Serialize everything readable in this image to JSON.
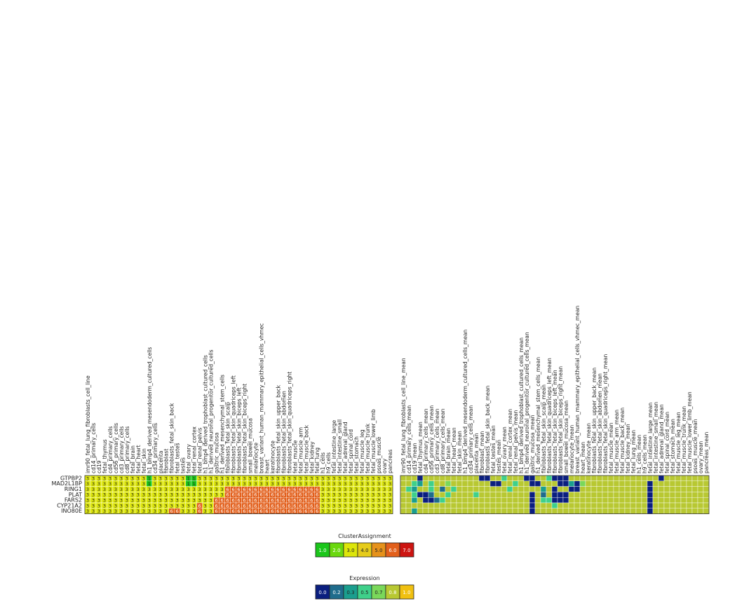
{
  "chart_data": [
    {
      "type": "heatmap",
      "name": "cluster-assignment-heatmap",
      "rows": [
        "GTPBP2",
        "MAD2L1BP",
        "RING1",
        "PLAT",
        "FARS2",
        "CYP21A2",
        "INO80E"
      ],
      "columns": [
        "imr90_fetal_lung_fibroblasts_cell_line",
        "cd14_primary_cells",
        "cd19",
        "fetal_thymus",
        "cd4_primary_cells",
        "cd56_primary_cells",
        "cd3_primary_cells",
        "cd8_primary_cells",
        "fetal_brain",
        "fetal_heart",
        "fetal_skin",
        "h1_bmp4_derived_mesendoderm_cultured_cells",
        "cd34_primary_cells",
        "placenta",
        "fibroblast",
        "fibroblasts_fetal_skin_back",
        "fetal_testes",
        "testes",
        "fetal_ovary",
        "fetal_renal_cortex",
        "fetal_renal_pelvis",
        "h1_bmp4_derived_trophoblast_cultured_cells",
        "h1_derived_neuronal_progenitor_cultured_cells",
        "gastric_mucosa",
        "h1_derived_mesenchymal_stem_cells",
        "fibroblasts_fetal_skin_scalp",
        "fibroblasts_fetal_skin_quadriceps_left",
        "fibroblasts_fetal_skin_biceps_left",
        "fibroblasts_fetal_skin_biceps_right",
        "small_bowel_mucosa",
        "melanocyte",
        "breast_variant_human_mammary_epithelial_cells_vhmec",
        "heart",
        "keratinocyte",
        "fibroblasts_fetal_skin_upper_back",
        "fibroblasts_fetal_skin_abdomen",
        "fibroblasts_fetal_skin_quadriceps_right",
        "fetal_muscle",
        "fetal_muscle_arm",
        "fetal_muscle_back",
        "fetal_kidney",
        "fetal_lung",
        "h1_cells",
        "h9_cells",
        "fetal_intestine_large",
        "fetal_intestine_small",
        "fetal_adrenal_gland",
        "fetal_spinal_cord",
        "fetal_stomach",
        "fetal_muscle_leg",
        "fetal_muscle_trunk",
        "fetal_muscle_lower_limb",
        "psoas_muscle",
        "ovary",
        "pancreas"
      ],
      "values": [
        [
          3,
          3,
          3,
          3,
          3,
          3,
          3,
          3,
          3,
          3,
          3,
          1,
          3,
          3,
          3,
          3,
          3,
          3,
          1,
          1,
          3,
          3,
          3,
          3,
          3,
          3,
          3,
          3,
          3,
          3,
          3,
          3,
          3,
          3,
          3,
          3,
          3,
          3,
          3,
          3,
          3,
          3,
          3,
          3,
          3,
          3,
          3,
          3,
          3,
          3,
          3,
          3,
          3,
          3,
          3
        ],
        [
          3,
          3,
          3,
          3,
          3,
          3,
          3,
          3,
          3,
          3,
          3,
          1,
          3,
          3,
          3,
          3,
          3,
          3,
          1,
          1,
          3,
          3,
          3,
          3,
          3,
          3,
          3,
          3,
          3,
          3,
          3,
          3,
          3,
          3,
          3,
          3,
          3,
          3,
          3,
          3,
          3,
          3,
          3,
          3,
          3,
          3,
          3,
          3,
          3,
          3,
          3,
          3,
          3,
          3,
          3
        ],
        [
          3,
          3,
          3,
          3,
          3,
          3,
          3,
          3,
          3,
          3,
          3,
          3,
          3,
          3,
          3,
          3,
          3,
          3,
          3,
          3,
          3,
          3,
          3,
          3,
          3,
          6,
          6,
          6,
          6,
          6,
          6,
          6,
          6,
          6,
          6,
          6,
          6,
          6,
          6,
          6,
          6,
          6,
          3,
          3,
          3,
          3,
          3,
          3,
          3,
          3,
          3,
          3,
          3,
          3,
          3
        ],
        [
          3,
          3,
          3,
          3,
          3,
          3,
          3,
          3,
          3,
          3,
          3,
          3,
          3,
          3,
          3,
          3,
          3,
          3,
          3,
          3,
          3,
          3,
          3,
          3,
          3,
          6,
          6,
          6,
          6,
          6,
          6,
          6,
          6,
          6,
          6,
          6,
          6,
          6,
          6,
          6,
          6,
          6,
          3,
          3,
          3,
          3,
          3,
          3,
          3,
          3,
          3,
          3,
          3,
          3,
          3
        ],
        [
          3,
          3,
          3,
          3,
          3,
          3,
          3,
          3,
          3,
          3,
          3,
          3,
          3,
          3,
          3,
          3,
          3,
          3,
          3,
          3,
          3,
          3,
          3,
          6,
          6,
          6,
          6,
          6,
          6,
          6,
          6,
          6,
          6,
          6,
          6,
          6,
          6,
          6,
          6,
          6,
          6,
          6,
          3,
          3,
          3,
          3,
          3,
          3,
          3,
          3,
          3,
          3,
          3,
          3,
          3
        ],
        [
          3,
          3,
          3,
          3,
          3,
          3,
          3,
          3,
          3,
          3,
          3,
          3,
          3,
          3,
          3,
          3,
          3,
          3,
          3,
          3,
          6,
          3,
          3,
          6,
          6,
          6,
          6,
          6,
          6,
          6,
          6,
          6,
          6,
          6,
          6,
          6,
          6,
          6,
          6,
          6,
          6,
          6,
          3,
          3,
          3,
          3,
          3,
          3,
          3,
          3,
          3,
          3,
          3,
          3,
          3
        ],
        [
          3,
          3,
          3,
          3,
          3,
          3,
          3,
          3,
          3,
          3,
          3,
          3,
          3,
          3,
          3,
          6,
          6,
          3,
          3,
          3,
          6,
          3,
          3,
          6,
          6,
          6,
          6,
          6,
          6,
          6,
          6,
          6,
          6,
          6,
          6,
          6,
          6,
          6,
          6,
          6,
          6,
          6,
          3,
          3,
          3,
          3,
          3,
          3,
          3,
          3,
          3,
          3,
          3,
          3,
          3
        ]
      ],
      "legend": {
        "title": "ClusterAssignment",
        "values": [
          "1.0",
          "2.0",
          "3.0",
          "4.0",
          "5.0",
          "6.0",
          "7.0"
        ],
        "colors": [
          "#1bc61b",
          "#6ad80e",
          "#dde60a",
          "#e6cc1a",
          "#e6921b",
          "#e25f1b",
          "#cc1511"
        ]
      }
    },
    {
      "type": "heatmap",
      "name": "expression-heatmap",
      "rows": [
        "GTPBP2",
        "MAD2L1BP",
        "RING1",
        "PLAT",
        "FARS2",
        "CYP21A2",
        "INO80E"
      ],
      "columns": [
        "imr90_fetal_lung_fibroblasts_cell_line_mean",
        "cd14_primary_cells_mean",
        "cd19_mean",
        "fetal_thymus_mean",
        "cd4_primary_cells_mean",
        "cd56_primary_cells_mean",
        "cd3_primary_cells_mean",
        "cd8_primary_cells_mean",
        "fetal_brain_mean",
        "fetal_heart_mean",
        "fetal_skin_mean",
        "h1_bmp4_derived_mesendoderm_cultured_cells_mean",
        "cd34_primary_cells_mean",
        "placenta_mean",
        "fibroblast_mean",
        "fibroblasts_fetal_skin_back_mean",
        "fetal_testes_mean",
        "testes_mean",
        "fetal_ovary_mean",
        "fetal_renal_cortex_mean",
        "fetal_renal_pelvis_mean",
        "h1_bmp4_derived_trophoblast_cultured_cells_mean",
        "h1_derived_neuronal_progenitor_cultured_cells_mean",
        "gastric_mucosa_mean",
        "h1_derived_mesenchymal_stem_cells_mean",
        "fibroblasts_fetal_skin_scalp_mean",
        "fibroblasts_fetal_skin_quadriceps_left_mean",
        "fibroblasts_fetal_skin_biceps_left_mean",
        "fibroblasts_fetal_skin_biceps_right_mean",
        "small_bowel_mucosa_mean",
        "melanocyte_mean",
        "breast_variant_human_mammary_epithelial_cells_vhmec_mean",
        "heart_mean",
        "keratinocyte_mean",
        "fibroblasts_fetal_skin_upper_back_mean",
        "fibroblasts_fetal_skin_abdomen_mean",
        "fibroblasts_fetal_skin_quadriceps_right_mean",
        "fetal_muscle_mean",
        "fetal_muscle_arm_mean",
        "fetal_muscle_back_mean",
        "fetal_kidney_mean",
        "fetal_lung_mean",
        "h1_cells_mean",
        "h9_cells_mean",
        "fetal_intestine_large_mean",
        "fetal_intestine_small_mean",
        "fetal_adrenal_gland_mean",
        "fetal_spinal_cord_mean",
        "fetal_stomach_mean",
        "fetal_muscle_leg_mean",
        "fetal_muscle_trunk_mean",
        "fetal_muscle_lower_limb_mean",
        "psoas_muscle_mean",
        "ovary_mean",
        "pancreas_mean"
      ],
      "values": [
        [
          0.8,
          0.8,
          0.8,
          0.0,
          0.8,
          0.8,
          0.8,
          0.8,
          0.8,
          0.8,
          0.8,
          0.8,
          0.8,
          0.8,
          0.0,
          0.0,
          0.8,
          0.8,
          0.5,
          0.8,
          0.8,
          0.8,
          0.0,
          0.0,
          0.8,
          0.8,
          0.5,
          0.1,
          0.0,
          0.0,
          0.8,
          0.8,
          0.8,
          0.8,
          0.8,
          0.8,
          0.8,
          0.8,
          0.8,
          0.8,
          0.8,
          0.8,
          0.8,
          0.8,
          0.8,
          0.8,
          0.0,
          0.8,
          0.8,
          0.8,
          0.8,
          0.8,
          0.8,
          0.8,
          0.8,
          0.8,
          0.8,
          0.8,
          0.8,
          0.8,
          0.8,
          0.8,
          0.8,
          0.8,
          0.8,
          0.8,
          0.8,
          0.8,
          0.8,
          0.1,
          0.1,
          0.8,
          0.8,
          0.8,
          0.8,
          0.8,
          0.8,
          0.5,
          0.5,
          0.1,
          0.2
        ],
        [
          0.8,
          0.8,
          0.5,
          0.3,
          0.8,
          0.5,
          0.8,
          0.8,
          0.7,
          0.8,
          0.8,
          0.8,
          0.8,
          0.8,
          0.8,
          0.8,
          0.0,
          0.0,
          0.8,
          0.8,
          0.5,
          0.8,
          0.8,
          0.0,
          0.0,
          0.8,
          0.8,
          0.8,
          0.0,
          0.0,
          0.3,
          0.0,
          0.7,
          0.8,
          0.8,
          0.8,
          0.8,
          0.8,
          0.8,
          0.8,
          0.8,
          0.8,
          0.8,
          0.8,
          0.0,
          0.8,
          0.8,
          0.8,
          0.8,
          0.8,
          0.8,
          0.8,
          0.8,
          0.8,
          0.8,
          0.8,
          0.8,
          0.8,
          0.8,
          0.8,
          0.8,
          0.8,
          0.8,
          0.8,
          0.8,
          0.8,
          0.8,
          0.8,
          0.8,
          0.8,
          0.8,
          0.8,
          0.8,
          0.5,
          0.8,
          0.8,
          0.8,
          0.8,
          0.0,
          0.8,
          0.8
        ],
        [
          0.8,
          0.5,
          0.3,
          0.8,
          0.8,
          0.5,
          0.8,
          0.2,
          0.8,
          0.5,
          0.8,
          0.8,
          0.8,
          0.8,
          0.8,
          0.8,
          0.8,
          0.8,
          0.8,
          0.5,
          0.8,
          0.8,
          0.8,
          0.8,
          0.8,
          0.3,
          0.8,
          0.0,
          0.8,
          0.8,
          0.0,
          0.1,
          0.8,
          0.8,
          0.8,
          0.8,
          0.8,
          0.8,
          0.8,
          0.8,
          0.8,
          0.8,
          0.8,
          0.8,
          0.0,
          0.8,
          0.8,
          0.8,
          0.8,
          0.8,
          0.8,
          0.8,
          0.8,
          0.8,
          0.8,
          0.8,
          0.8,
          0.8,
          0.8,
          0.8,
          0.8,
          0.8,
          0.8,
          0.8,
          0.8,
          0.8,
          0.8,
          0.8,
          0.8,
          0.8,
          0.8,
          0.8,
          0.8,
          0.8,
          0.3,
          0.0,
          0.8,
          0.8,
          0.8,
          0.8,
          0.0
        ],
        [
          0.8,
          0.8,
          0.5,
          0.0,
          0.0,
          0.2,
          0.8,
          0.8,
          0.5,
          0.8,
          0.8,
          0.8,
          0.8,
          0.5,
          0.8,
          0.8,
          0.8,
          0.8,
          0.8,
          0.8,
          0.8,
          0.8,
          0.8,
          0.0,
          0.8,
          0.2,
          0.8,
          0.0,
          0.0,
          0.0,
          0.8,
          0.8,
          0.8,
          0.8,
          0.8,
          0.8,
          0.8,
          0.8,
          0.8,
          0.8,
          0.8,
          0.8,
          0.8,
          0.8,
          0.0,
          0.8,
          0.8,
          0.8,
          0.8,
          0.8,
          0.8,
          0.8,
          0.8,
          0.8,
          0.8,
          0.8,
          0.8,
          0.8,
          0.8,
          0.8,
          0.8,
          0.8,
          0.8,
          0.8,
          0.8,
          0.8,
          0.8,
          0.8,
          0.8,
          0.8,
          0.0,
          0.8,
          0.8,
          0.8,
          0.8,
          0.8,
          0.8,
          0.8,
          0.8,
          0.8,
          0.8
        ],
        [
          0.8,
          0.8,
          0.3,
          0.8,
          0.1,
          0.0,
          0.2,
          0.5,
          0.8,
          0.8,
          0.8,
          0.8,
          0.8,
          0.8,
          0.8,
          0.8,
          0.8,
          0.8,
          0.8,
          0.8,
          0.8,
          0.8,
          0.8,
          0.0,
          0.8,
          0.5,
          0.5,
          0.1,
          0.0,
          0.0,
          0.8,
          0.8,
          0.8,
          0.8,
          0.8,
          0.8,
          0.8,
          0.8,
          0.8,
          0.8,
          0.8,
          0.8,
          0.8,
          0.8,
          0.0,
          0.8,
          0.8,
          0.8,
          0.8,
          0.8,
          0.8,
          0.8,
          0.8,
          0.8,
          0.8,
          0.8,
          0.8,
          0.8,
          0.8,
          0.8,
          0.8,
          0.8,
          0.8,
          0.8,
          0.8,
          0.8,
          0.8,
          0.8,
          0.1,
          0.8,
          0.8,
          0.8,
          0.8,
          0.8,
          0.8,
          0.8,
          0.8,
          0.5,
          0.8,
          0.8,
          0.8
        ],
        [
          0.8,
          0.8,
          0.8,
          0.8,
          0.8,
          0.8,
          0.8,
          0.8,
          0.8,
          0.8,
          0.8,
          0.8,
          0.8,
          0.8,
          0.8,
          0.8,
          0.8,
          0.8,
          0.8,
          0.8,
          0.8,
          0.8,
          0.8,
          0.0,
          0.8,
          0.8,
          0.8,
          0.5,
          0.8,
          0.8,
          0.8,
          0.8,
          0.8,
          0.8,
          0.8,
          0.8,
          0.8,
          0.8,
          0.8,
          0.8,
          0.8,
          0.8,
          0.8,
          0.8,
          0.0,
          0.8,
          0.8,
          0.8,
          0.8,
          0.8,
          0.8,
          0.8,
          0.8,
          0.8,
          0.8,
          0.8,
          0.8,
          0.8,
          0.8,
          0.8,
          0.8,
          0.8,
          0.8,
          0.8,
          0.8,
          0.8,
          0.8,
          0.8,
          0.8,
          0.8,
          0.8,
          0.8,
          0.8,
          0.8,
          0.8,
          0.8,
          0.8,
          0.8,
          0.5,
          0.8,
          0.3
        ],
        [
          0.8,
          0.8,
          0.3,
          0.8,
          0.8,
          0.8,
          0.8,
          0.8,
          0.8,
          0.8,
          0.8,
          0.8,
          0.8,
          0.8,
          0.8,
          0.8,
          0.8,
          0.8,
          0.8,
          0.8,
          0.8,
          0.8,
          0.8,
          0.0,
          0.8,
          0.8,
          0.8,
          0.8,
          0.8,
          0.8,
          0.8,
          0.8,
          0.8,
          0.8,
          0.8,
          0.8,
          0.8,
          0.8,
          0.8,
          0.8,
          0.8,
          0.8,
          0.8,
          0.8,
          0.0,
          0.8,
          0.8,
          0.8,
          0.8,
          0.8,
          0.8,
          0.8,
          0.8,
          0.8,
          0.8,
          0.8,
          0.8,
          0.8,
          0.8,
          0.8,
          0.8,
          0.8,
          0.8,
          0.8,
          0.8,
          0.8,
          0.8,
          0.8,
          0.8,
          0.8,
          0.8,
          0.8,
          0.8,
          0.8,
          0.8,
          0.8,
          0.8,
          0.8,
          0.3,
          0.8,
          0.3
        ]
      ],
      "legend": {
        "title": "Expression",
        "values": [
          "0.0",
          "0.2",
          "0.3",
          "0.5",
          "0.7",
          "0.8",
          "1.0"
        ],
        "colors": [
          "#0b1f7f",
          "#1f6c8c",
          "#1a9e8e",
          "#3fd08a",
          "#7ad85a",
          "#b8c832",
          "#f0c010"
        ]
      }
    }
  ]
}
